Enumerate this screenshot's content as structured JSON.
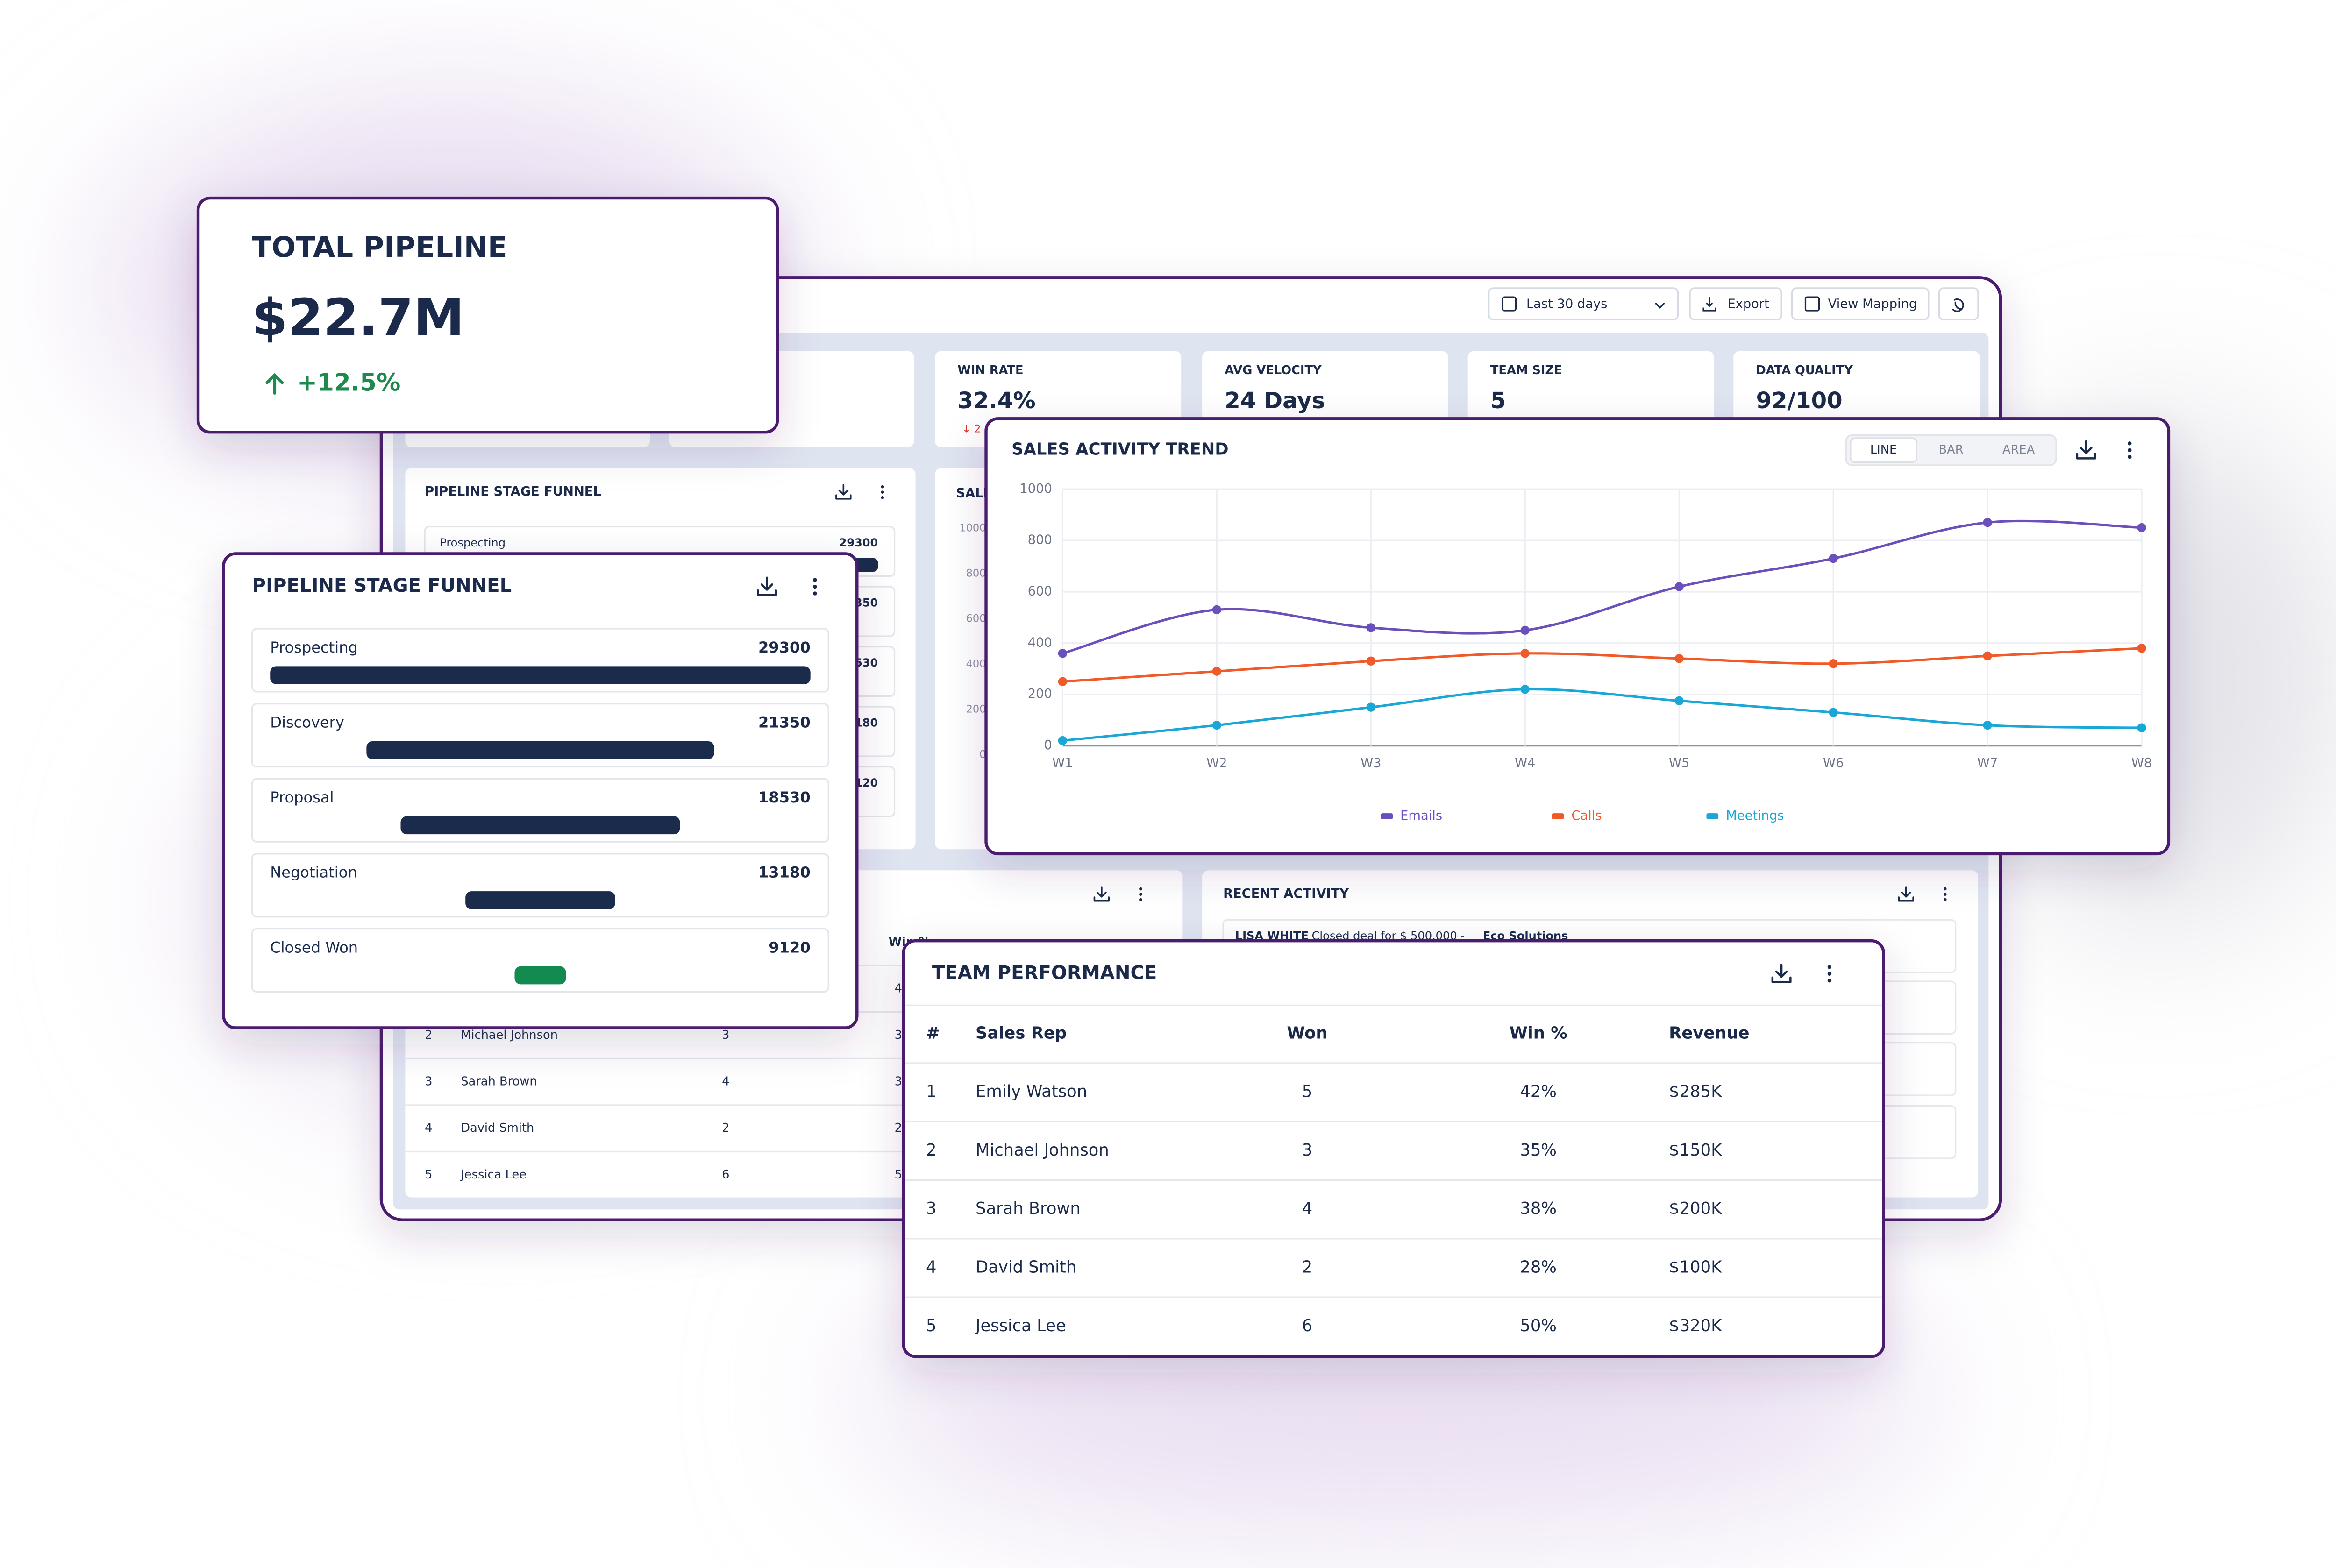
{
  "total_pipeline": {
    "title": "TOTAL PIPELINE",
    "value": "$22.7M",
    "change": "+12.5%"
  },
  "dashboard": {
    "toolbar": {
      "date_range": "Last 30 days",
      "export": "Export",
      "view_mapping": "View Mapping"
    },
    "kpis": [
      {
        "label": "WIN RATE",
        "value": "32.4%",
        "change": "↓ 2"
      },
      {
        "label": "AVG VELOCITY",
        "value": "24 Days"
      },
      {
        "label": "TEAM SIZE",
        "value": "5"
      },
      {
        "label": "DATA QUALITY",
        "value": "92/100"
      }
    ]
  },
  "funnel": {
    "title": "PIPELINE STAGE FUNNEL",
    "stages": [
      {
        "name": "Prospecting",
        "value": 29300,
        "color": "#1b2b4b"
      },
      {
        "name": "Discovery",
        "value": 21350,
        "color": "#1b2b4b"
      },
      {
        "name": "Proposal",
        "value": 18530,
        "color": "#1b2b4b"
      },
      {
        "name": "Negotiation",
        "value": 13180,
        "color": "#1b2b4b"
      },
      {
        "name": "Closed Won",
        "value": 9120,
        "color": "#138a4f"
      }
    ]
  },
  "chart_data": {
    "type": "line",
    "title": "SALES ACTIVITY TREND",
    "view_options": [
      "LINE",
      "BAR",
      "AREA"
    ],
    "categories": [
      "W1",
      "W2",
      "W3",
      "W4",
      "W5",
      "W6",
      "W7",
      "W8"
    ],
    "series": [
      {
        "name": "Emails",
        "color": "#6b4fbb",
        "values": [
          360,
          530,
          460,
          450,
          620,
          730,
          870,
          850
        ]
      },
      {
        "name": "Calls",
        "color": "#f05a28",
        "values": [
          250,
          290,
          330,
          360,
          340,
          320,
          350,
          380
        ]
      },
      {
        "name": "Meetings",
        "color": "#1aa7d6",
        "values": [
          20,
          80,
          150,
          220,
          175,
          130,
          80,
          70
        ]
      }
    ],
    "ylim": [
      0,
      1000
    ],
    "yticks": [
      0,
      200,
      400,
      600,
      800,
      1000
    ],
    "grid": true
  },
  "recent_activity": {
    "title": "RECENT ACTIVITY",
    "items": [
      {
        "name": "LISA WHITE",
        "text": "Closed deal for $ 500,000 -",
        "company": "Eco Solutions"
      }
    ]
  },
  "team_performance": {
    "title": "TEAM PERFORMANCE",
    "columns": [
      "#",
      "Sales Rep",
      "Won",
      "Win %",
      "Revenue"
    ],
    "rows": [
      [
        "1",
        "Emily Watson",
        "5",
        "42%",
        "$285K"
      ],
      [
        "2",
        "Michael Johnson",
        "3",
        "35%",
        "$150K"
      ],
      [
        "3",
        "Sarah Brown",
        "4",
        "38%",
        "$200K"
      ],
      [
        "4",
        "David Smith",
        "2",
        "28%",
        "$100K"
      ],
      [
        "5",
        "Jessica Lee",
        "6",
        "50%",
        "$320K"
      ]
    ]
  }
}
